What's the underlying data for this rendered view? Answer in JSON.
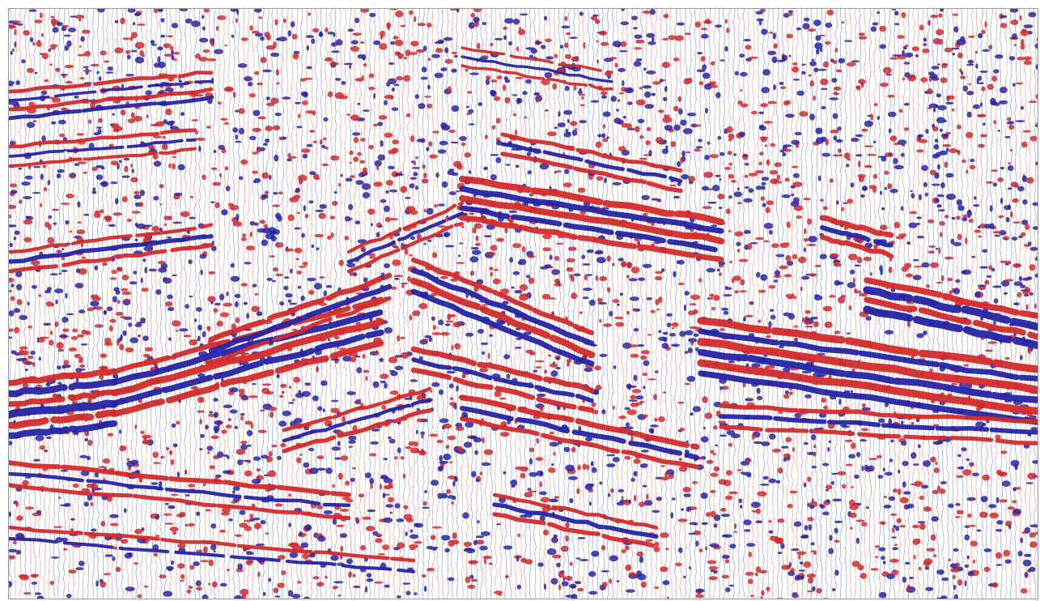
{
  "image": {
    "kind": "seismic-section",
    "colors": {
      "positive": "#d42a2a",
      "negative": "#2424a8",
      "background": "#ffffff",
      "frame": "#9a9a9a"
    }
  }
}
